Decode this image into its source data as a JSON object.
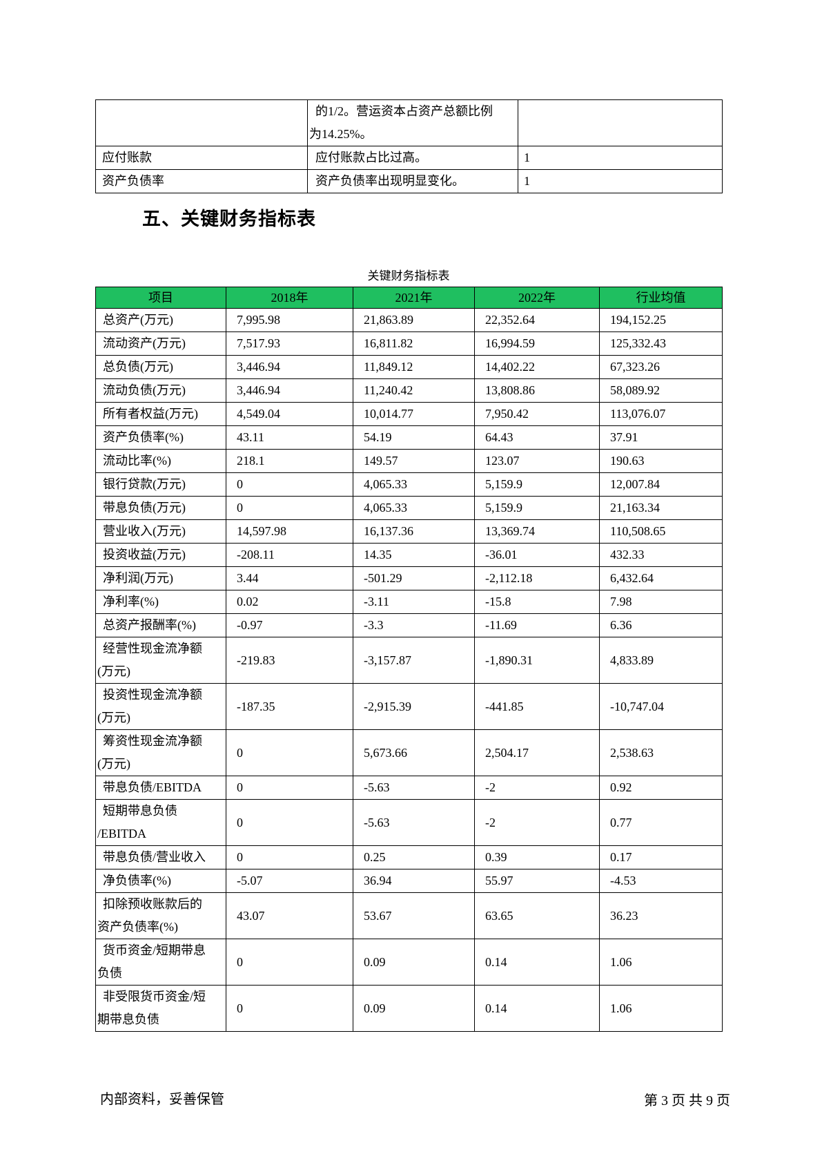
{
  "page": {
    "section_heading": "五、关键财务指标表",
    "table_caption": "关键财务指标表",
    "footer_left": "内部资料，妥善保管",
    "footer_right": "第 3 页  共 9 页"
  },
  "carryover_table": {
    "rows": [
      {
        "item": "",
        "desc": "的1/2。营运资本占资产总额比例\n为14.25%。",
        "score": ""
      },
      {
        "item": "应付账款",
        "desc": "应付账款占比过高。",
        "score": "1"
      },
      {
        "item": "资产负债率",
        "desc": "资产负债率出现明显变化。",
        "score": "1"
      }
    ]
  },
  "indicator_table": {
    "header_bg_color": "#1FBF60",
    "headers": [
      "项目",
      "2018年",
      "2021年",
      "2022年",
      "行业均值"
    ],
    "rows": [
      {
        "label": "总资产(万元)",
        "values": [
          "7,995.98",
          "21,863.89",
          "22,352.64",
          "194,152.25"
        ]
      },
      {
        "label": "流动资产(万元)",
        "values": [
          "7,517.93",
          "16,811.82",
          "16,994.59",
          "125,332.43"
        ]
      },
      {
        "label": "总负债(万元)",
        "values": [
          "3,446.94",
          "11,849.12",
          "14,402.22",
          "67,323.26"
        ]
      },
      {
        "label": "流动负债(万元)",
        "values": [
          "3,446.94",
          "11,240.42",
          "13,808.86",
          "58,089.92"
        ]
      },
      {
        "label": "所有者权益(万元)",
        "values": [
          "4,549.04",
          "10,014.77",
          "7,950.42",
          "113,076.07"
        ]
      },
      {
        "label": "资产负债率(%)",
        "values": [
          "43.11",
          "54.19",
          "64.43",
          "37.91"
        ]
      },
      {
        "label": "流动比率(%)",
        "values": [
          "218.1",
          "149.57",
          "123.07",
          "190.63"
        ]
      },
      {
        "label": "银行贷款(万元)",
        "values": [
          "0",
          "4,065.33",
          "5,159.9",
          "12,007.84"
        ]
      },
      {
        "label": "带息负债(万元)",
        "values": [
          "0",
          "4,065.33",
          "5,159.9",
          "21,163.34"
        ]
      },
      {
        "label": "营业收入(万元)",
        "values": [
          "14,597.98",
          "16,137.36",
          "13,369.74",
          "110,508.65"
        ]
      },
      {
        "label": "投资收益(万元)",
        "values": [
          "-208.11",
          "14.35",
          "-36.01",
          "432.33"
        ]
      },
      {
        "label": "净利润(万元)",
        "values": [
          "3.44",
          "-501.29",
          "-2,112.18",
          "6,432.64"
        ]
      },
      {
        "label": "净利率(%)",
        "values": [
          "0.02",
          "-3.11",
          "-15.8",
          "7.98"
        ]
      },
      {
        "label": "总资产报酬率(%)",
        "values": [
          "-0.97",
          "-3.3",
          "-11.69",
          "6.36"
        ]
      },
      {
        "label": "经营性现金流净额\n(万元)",
        "values": [
          "-219.83",
          "-3,157.87",
          "-1,890.31",
          "4,833.89"
        ]
      },
      {
        "label": "投资性现金流净额\n(万元)",
        "values": [
          "-187.35",
          "-2,915.39",
          "-441.85",
          "-10,747.04"
        ]
      },
      {
        "label": "筹资性现金流净额\n(万元)",
        "values": [
          "0",
          "5,673.66",
          "2,504.17",
          "2,538.63"
        ]
      },
      {
        "label": "带息负债/EBITDA",
        "values": [
          "0",
          "-5.63",
          "-2",
          "0.92"
        ]
      },
      {
        "label": "短期带息负债\n/EBITDA",
        "values": [
          "0",
          "-5.63",
          "-2",
          "0.77"
        ]
      },
      {
        "label": "带息负债/营业收入",
        "values": [
          "0",
          "0.25",
          "0.39",
          "0.17"
        ]
      },
      {
        "label": "净负债率(%)",
        "values": [
          "-5.07",
          "36.94",
          "55.97",
          "-4.53"
        ]
      },
      {
        "label": "扣除预收账款后的\n资产负债率(%)",
        "values": [
          "43.07",
          "53.67",
          "63.65",
          "36.23"
        ]
      },
      {
        "label": "货币资金/短期带息\n负债",
        "values": [
          "0",
          "0.09",
          "0.14",
          "1.06"
        ]
      },
      {
        "label": "非受限货币资金/短\n期带息负债",
        "values": [
          "0",
          "0.09",
          "0.14",
          "1.06"
        ]
      }
    ]
  }
}
